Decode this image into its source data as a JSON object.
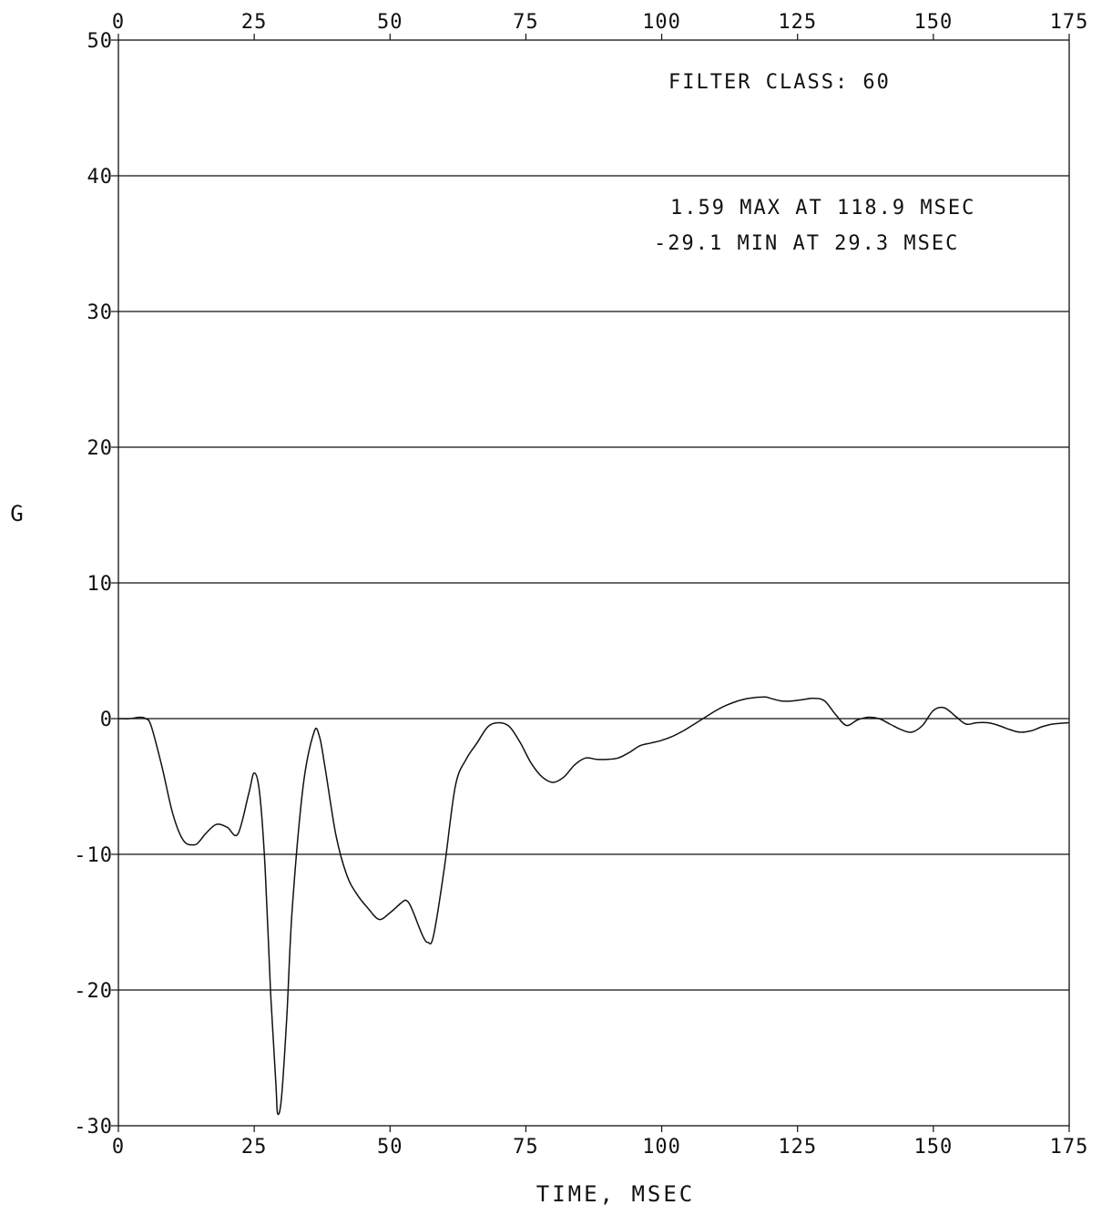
{
  "chart_data": {
    "type": "line",
    "title": "",
    "xlabel": "TIME, MSEC",
    "ylabel": "G",
    "xlim": [
      0,
      175
    ],
    "ylim": [
      -30,
      50
    ],
    "x_ticks": [
      0,
      25,
      50,
      75,
      100,
      125,
      150,
      175
    ],
    "y_ticks": [
      -30,
      -20,
      -10,
      0,
      10,
      20,
      30,
      40,
      50
    ],
    "x_tick_labels": [
      "0",
      "25",
      "50",
      "75",
      "100",
      "125",
      "150",
      "175"
    ],
    "y_tick_labels": [
      "-30",
      "-20",
      "-10",
      "0",
      "10",
      "20",
      "30",
      "40",
      "50"
    ],
    "grid": "horizontal",
    "annotations": {
      "filter": "FILTER CLASS: 60",
      "max": "1.59 MAX AT 118.9 MSEC",
      "min": "-29.1 MIN AT 29.3 MSEC"
    },
    "series": [
      {
        "x": [
          0,
          2,
          4,
          5,
          6,
          8,
          10,
          12,
          14,
          15,
          16,
          18,
          20,
          22,
          24,
          25,
          26,
          27,
          28,
          29,
          29.3,
          30,
          31,
          32,
          34,
          36,
          37,
          38,
          40,
          42,
          44,
          46,
          48,
          50,
          52,
          53,
          54,
          56,
          57,
          58,
          60,
          62,
          64,
          66,
          68,
          70,
          72,
          74,
          76,
          78,
          80,
          82,
          84,
          86,
          88,
          90,
          92,
          94,
          96,
          98,
          100,
          102,
          104,
          106,
          108,
          110,
          112,
          114,
          116,
          118.9,
          120,
          122,
          124,
          126,
          128,
          130,
          132,
          134,
          136,
          138,
          140,
          142,
          144,
          146,
          148,
          150,
          152,
          154,
          156,
          158,
          160,
          162,
          164,
          166,
          168,
          170,
          172,
          175
        ],
        "y": [
          0,
          0,
          0.1,
          0,
          -0.5,
          -3.5,
          -7,
          -9,
          -9.3,
          -9,
          -8.5,
          -7.8,
          -8,
          -8.5,
          -5.5,
          -4,
          -5.5,
          -11,
          -20,
          -27,
          -29.1,
          -28,
          -22,
          -14,
          -5,
          -1,
          -1.3,
          -3.5,
          -8.5,
          -11.5,
          -13,
          -14,
          -14.8,
          -14.3,
          -13.6,
          -13.4,
          -14,
          -16,
          -16.5,
          -16,
          -11,
          -5,
          -3,
          -1.8,
          -0.6,
          -0.3,
          -0.6,
          -1.8,
          -3.3,
          -4.3,
          -4.7,
          -4.3,
          -3.4,
          -2.9,
          -3,
          -3,
          -2.9,
          -2.5,
          -2,
          -1.8,
          -1.6,
          -1.3,
          -0.9,
          -0.4,
          0.1,
          0.6,
          1,
          1.3,
          1.5,
          1.59,
          1.5,
          1.3,
          1.3,
          1.4,
          1.5,
          1.3,
          0.3,
          -0.5,
          -0.1,
          0.1,
          0,
          -0.4,
          -0.8,
          -1,
          -0.5,
          0.6,
          0.8,
          0.2,
          -0.4,
          -0.3,
          -0.3,
          -0.5,
          -0.8,
          -1,
          -0.9,
          -0.6,
          -0.4,
          -0.3
        ]
      }
    ]
  }
}
